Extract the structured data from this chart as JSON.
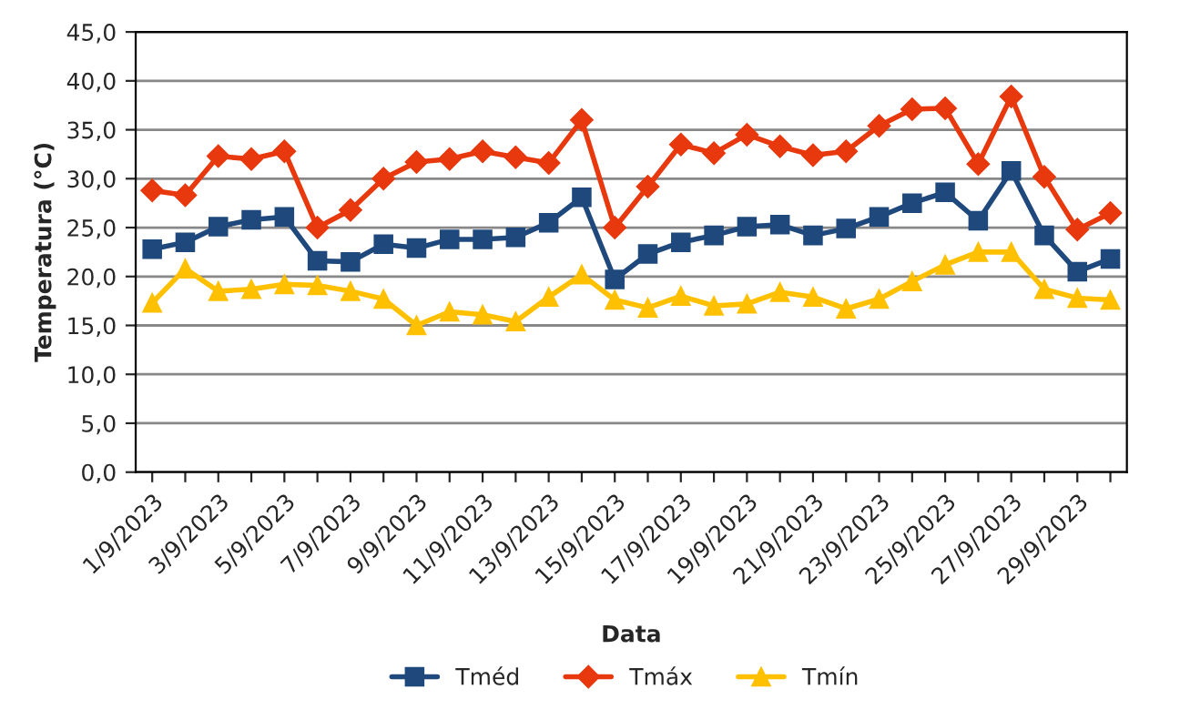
{
  "chart_data": {
    "type": "line",
    "xlabel": "Data",
    "ylabel": "Temperatura (°C)",
    "categories": [
      "1/9/2023",
      null,
      "3/9/2023",
      null,
      "5/9/2023",
      null,
      "7/9/2023",
      null,
      "9/9/2023",
      null,
      "11/9/2023",
      null,
      "13/9/2023",
      null,
      "15/9/2023",
      null,
      "17/9/2023",
      null,
      "19/9/2023",
      null,
      "21/9/2023",
      null,
      "23/9/2023",
      null,
      "25/9/2023",
      null,
      "27/9/2023",
      null,
      "29/9/2023",
      null
    ],
    "series": [
      {
        "name": "Tméd",
        "color": "#1f497d",
        "marker": "square",
        "values": [
          22.8,
          23.5,
          25.1,
          25.8,
          26.1,
          21.6,
          21.5,
          23.3,
          22.9,
          23.8,
          23.8,
          24.0,
          25.5,
          28.1,
          19.7,
          22.3,
          23.5,
          24.2,
          25.1,
          25.3,
          24.2,
          24.9,
          26.1,
          27.5,
          28.6,
          25.7,
          30.8,
          24.2,
          20.5,
          21.8
        ]
      },
      {
        "name": "Tmáx",
        "color": "#e8380d",
        "marker": "diamond",
        "values": [
          28.8,
          28.3,
          32.3,
          32.0,
          32.8,
          25.0,
          26.8,
          30.0,
          31.7,
          32.0,
          32.8,
          32.2,
          31.6,
          36.0,
          25.0,
          29.2,
          33.5,
          32.6,
          34.5,
          33.3,
          32.4,
          32.8,
          35.4,
          37.1,
          37.2,
          31.5,
          38.4,
          30.2,
          24.8,
          26.5
        ]
      },
      {
        "name": "Tmín",
        "color": "#ffc000",
        "marker": "triangle",
        "values": [
          17.3,
          20.8,
          18.5,
          18.7,
          19.2,
          19.1,
          18.5,
          17.7,
          15.0,
          16.4,
          16.1,
          15.4,
          17.9,
          20.2,
          17.6,
          16.8,
          18.0,
          17.0,
          17.2,
          18.4,
          17.9,
          16.7,
          17.7,
          19.5,
          21.2,
          22.5,
          22.5,
          18.7,
          17.8,
          17.6
        ]
      }
    ],
    "ylim": [
      0,
      45
    ],
    "yticks": [
      {
        "value": 0,
        "label": "0,0"
      },
      {
        "value": 5,
        "label": "5,0"
      },
      {
        "value": 10,
        "label": "10,0"
      },
      {
        "value": 15,
        "label": "15,0"
      },
      {
        "value": 20,
        "label": "20,0"
      },
      {
        "value": 25,
        "label": "25,0"
      },
      {
        "value": 30,
        "label": "30,0"
      },
      {
        "value": 35,
        "label": "35,0"
      },
      {
        "value": 40,
        "label": "40,0"
      },
      {
        "value": 45,
        "label": "45,0"
      }
    ],
    "grid": "y",
    "legend": "bottom",
    "line_style": "solid"
  }
}
